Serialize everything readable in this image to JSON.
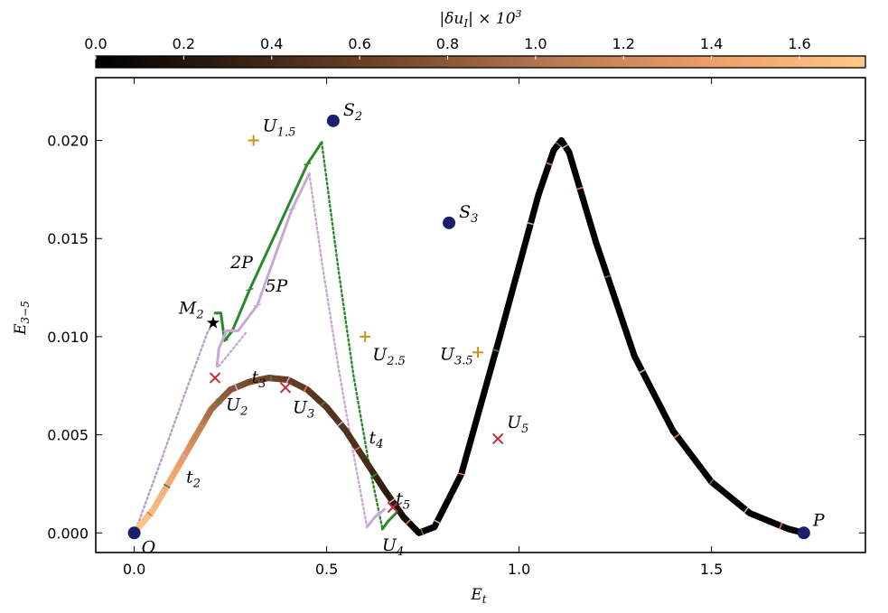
{
  "chart_data": {
    "type": "line",
    "xlabel": "E",
    "xlabel_sub": "t",
    "ylabel": "E",
    "ylabel_sub": "3−5",
    "xlim": [
      -0.1,
      1.9
    ],
    "ylim": [
      -0.001,
      0.0232
    ],
    "x_ticks": [
      0.0,
      0.5,
      1.0,
      1.5
    ],
    "x_tick_labels": [
      "0.0",
      "0.5",
      "1.0",
      "1.5"
    ],
    "y_ticks": [
      0.0,
      0.005,
      0.01,
      0.015,
      0.02
    ],
    "y_tick_labels": [
      "0.000",
      "0.005",
      "0.010",
      "0.015",
      "0.020"
    ],
    "colorbar": {
      "label_main": "|δu",
      "label_sub": "I",
      "label_end": "| × 10",
      "label_exp": "3",
      "range": [
        0.0,
        1.75
      ],
      "ticks": [
        0.0,
        0.2,
        0.4,
        0.6,
        0.8,
        1.0,
        1.2,
        1.4,
        1.6
      ],
      "tick_labels": [
        "0.0",
        "0.2",
        "0.4",
        "0.6",
        "0.8",
        "1.0",
        "1.2",
        "1.4",
        "1.6"
      ],
      "colors": [
        "#000000",
        "#3a2414",
        "#7a4a2c",
        "#b87a52",
        "#ee9e68",
        "#ffc88a"
      ]
    },
    "main_path": {
      "points": [
        [
          0.0,
          0.0
        ],
        [
          0.05,
          0.0012
        ],
        [
          0.1,
          0.0029
        ],
        [
          0.15,
          0.0046
        ],
        [
          0.2,
          0.0063
        ],
        [
          0.25,
          0.0073
        ],
        [
          0.3,
          0.0077
        ],
        [
          0.35,
          0.0079
        ],
        [
          0.4,
          0.0078
        ],
        [
          0.45,
          0.0073
        ],
        [
          0.5,
          0.0064
        ],
        [
          0.55,
          0.0052
        ],
        [
          0.6,
          0.0037
        ],
        [
          0.65,
          0.0022
        ],
        [
          0.7,
          0.0008
        ],
        [
          0.74,
          0.0
        ],
        [
          0.78,
          0.0003
        ],
        [
          0.85,
          0.003
        ],
        [
          0.95,
          0.01
        ],
        [
          1.05,
          0.0172
        ],
        [
          1.09,
          0.0195
        ],
        [
          1.11,
          0.02
        ],
        [
          1.13,
          0.0194
        ],
        [
          1.2,
          0.0148
        ],
        [
          1.3,
          0.009
        ],
        [
          1.4,
          0.0052
        ],
        [
          1.5,
          0.0026
        ],
        [
          1.6,
          0.001
        ],
        [
          1.7,
          0.0002
        ],
        [
          1.74,
          0.0
        ]
      ],
      "values": [
        1.75,
        1.65,
        1.5,
        1.25,
        0.95,
        0.8,
        0.7,
        0.65,
        0.6,
        0.55,
        0.5,
        0.48,
        0.45,
        0.3,
        0.15,
        0.0,
        0.0,
        0.0,
        0.0,
        0.0,
        0.0,
        0.0,
        0.0,
        0.0,
        0.0,
        0.0,
        0.0,
        0.0,
        0.0,
        0.0
      ]
    },
    "branches": [
      {
        "color": "#2a8a2a",
        "style": "solid",
        "points": [
          [
            0.21,
            0.0112
          ],
          [
            0.225,
            0.0112
          ],
          [
            0.235,
            0.0098
          ],
          [
            0.255,
            0.0103
          ],
          [
            0.3,
            0.0124
          ],
          [
            0.38,
            0.0158
          ],
          [
            0.45,
            0.0188
          ],
          [
            0.487,
            0.0199
          ]
        ]
      },
      {
        "color": "#2a8a2a",
        "style": "dotted",
        "points": [
          [
            0.487,
            0.0199
          ],
          [
            0.53,
            0.0135
          ],
          [
            0.57,
            0.008
          ],
          [
            0.61,
            0.0035
          ],
          [
            0.645,
            0.0002
          ]
        ]
      },
      {
        "color": "#2a8a2a",
        "style": "solid",
        "points": [
          [
            0.645,
            0.0002
          ],
          [
            0.66,
            0.0006
          ],
          [
            0.68,
            0.001
          ]
        ]
      },
      {
        "color": "#c8a8d4",
        "style": "solid",
        "points": [
          [
            0.215,
            0.0085
          ],
          [
            0.22,
            0.0094
          ],
          [
            0.24,
            0.0103
          ],
          [
            0.27,
            0.0103
          ],
          [
            0.32,
            0.0116
          ],
          [
            0.36,
            0.0138
          ],
          [
            0.41,
            0.0165
          ],
          [
            0.455,
            0.0183
          ]
        ]
      },
      {
        "color": "#c8a8d4",
        "style": "dotted",
        "points": [
          [
            0.455,
            0.0183
          ],
          [
            0.49,
            0.0135
          ],
          [
            0.53,
            0.0085
          ],
          [
            0.57,
            0.004
          ],
          [
            0.605,
            0.0003
          ]
        ]
      },
      {
        "color": "#c8a8d4",
        "style": "solid",
        "points": [
          [
            0.605,
            0.0003
          ],
          [
            0.625,
            0.0008
          ],
          [
            0.65,
            0.0012
          ]
        ]
      },
      {
        "color": "#b8a0c4",
        "style": "dotted",
        "points": [
          [
            0.005,
            0.0002
          ],
          [
            0.07,
            0.0037
          ],
          [
            0.13,
            0.007
          ],
          [
            0.19,
            0.0102
          ],
          [
            0.205,
            0.0107
          ]
        ]
      },
      {
        "color": "#c8a8d4",
        "style": "dotted",
        "points": [
          [
            0.22,
            0.0085
          ],
          [
            0.27,
            0.0097
          ],
          [
            0.29,
            0.0102
          ]
        ]
      }
    ],
    "saddle_points": [
      {
        "label": "S",
        "sub": "2",
        "x": 0.517,
        "y": 0.021
      },
      {
        "label": "S",
        "sub": "3",
        "x": 0.818,
        "y": 0.0158
      }
    ],
    "endpoints": [
      {
        "label": "O",
        "sub": "",
        "x": 0.0,
        "y": 0.0
      },
      {
        "label": "P",
        "sub": "",
        "x": 1.74,
        "y": 0.0
      }
    ],
    "minimum_point": {
      "label": "M",
      "sub": "2",
      "x": 0.205,
      "y": 0.0107
    },
    "unstable_crosses": [
      {
        "label": "U",
        "sub": "2",
        "x": 0.21,
        "y": 0.0079
      },
      {
        "label": "U",
        "sub": "3",
        "x": 0.393,
        "y": 0.0074
      },
      {
        "label": "U",
        "sub": "4",
        "x": 0.672,
        "y": 0.0013
      },
      {
        "label": "U",
        "sub": "5",
        "x": 0.945,
        "y": 0.0048
      }
    ],
    "unstable_plus": [
      {
        "label": "U",
        "sub": "1.5",
        "x": 0.31,
        "y": 0.02
      },
      {
        "label": "U",
        "sub": "2.5",
        "x": 0.6,
        "y": 0.01
      },
      {
        "label": "U",
        "sub": "3.5",
        "x": 0.893,
        "y": 0.0092
      }
    ],
    "time_labels": [
      {
        "label": "t",
        "sub": "2",
        "x": 0.135,
        "y": 0.0032
      },
      {
        "label": "t",
        "sub": "3",
        "x": 0.305,
        "y": 0.0083
      },
      {
        "label": "t",
        "sub": "4",
        "x": 0.61,
        "y": 0.0052
      },
      {
        "label": "t",
        "sub": "5",
        "x": 0.68,
        "y": 0.0021
      }
    ],
    "path_labels": [
      {
        "label": "2P",
        "x": 0.25,
        "y": 0.0135
      },
      {
        "label": "5P",
        "x": 0.34,
        "y": 0.0123
      }
    ],
    "colors": {
      "node": "#1a1f6e",
      "cross": "#c0303a",
      "plus": "#c8961e",
      "star": "#000000",
      "tick_mark_orange": "#f07a50",
      "tick_mark_green": "#3a8a3a",
      "tick_mark_purple": "#c8a8d4"
    }
  }
}
